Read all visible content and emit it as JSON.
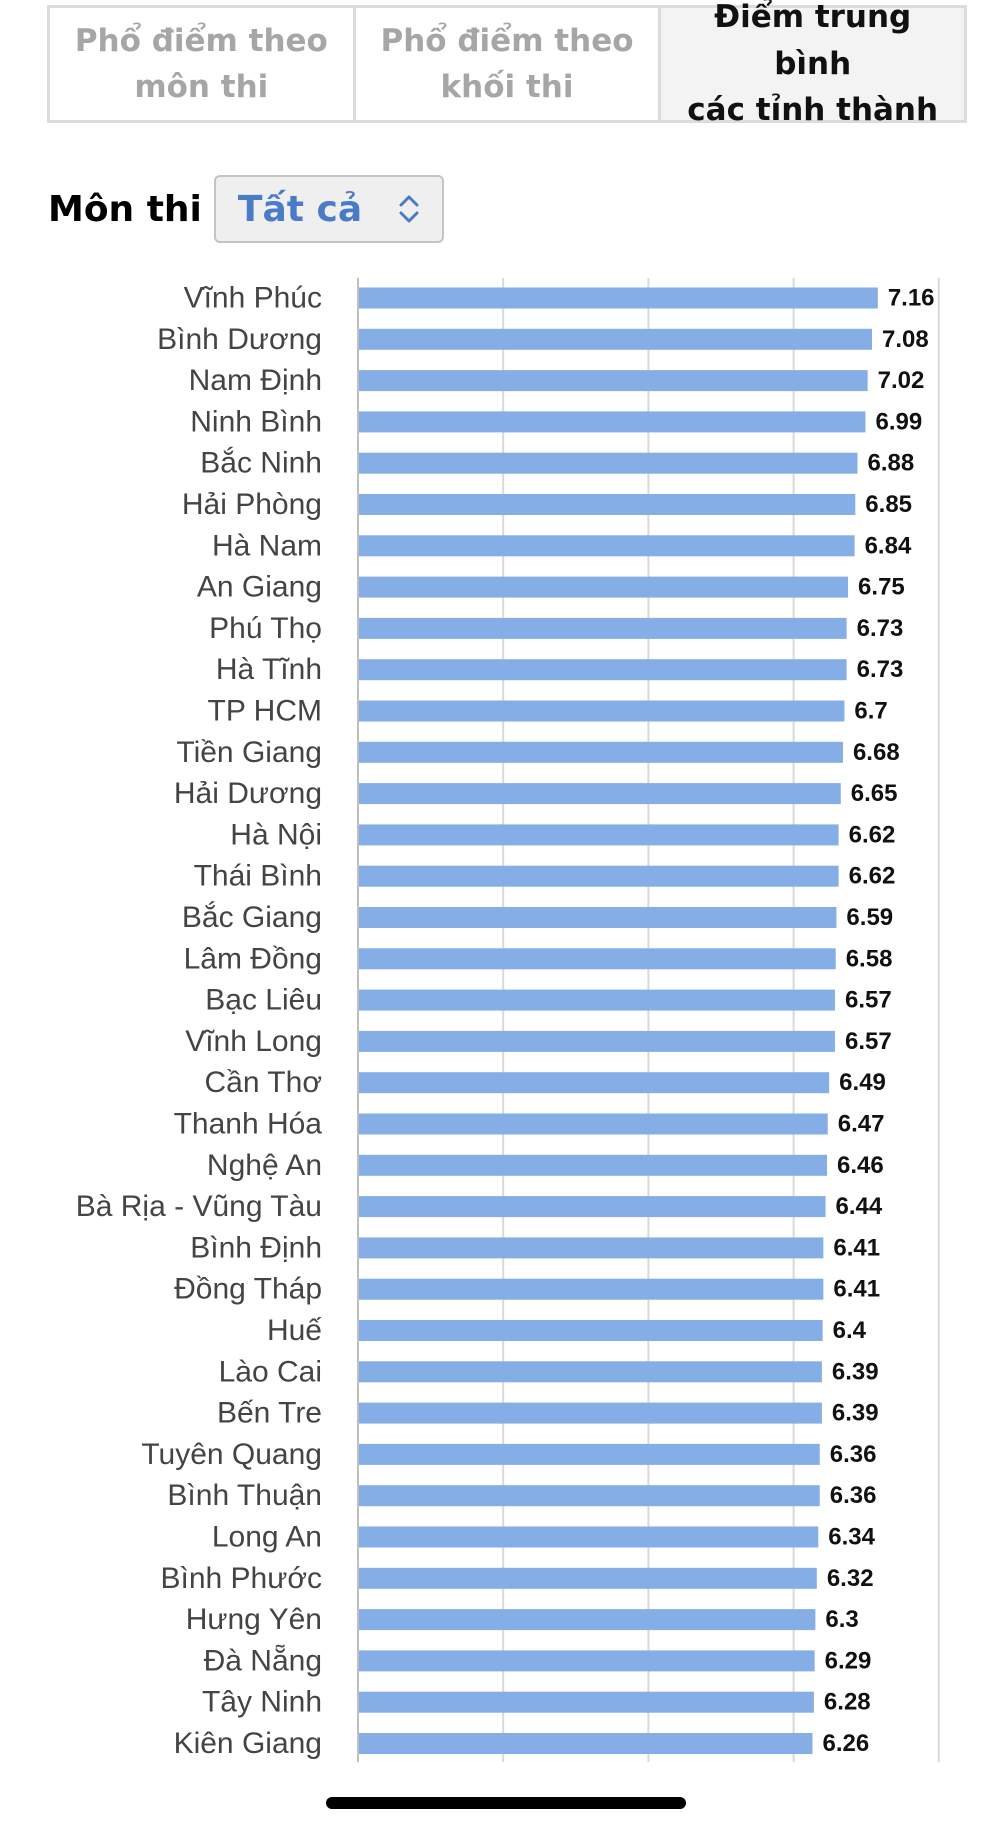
{
  "tabs": [
    {
      "label_line1": "Phổ điểm theo",
      "label_line2": "môn thi",
      "active": false
    },
    {
      "label_line1": "Phổ điểm theo",
      "label_line2": "khối thi",
      "active": false
    },
    {
      "label_line1": "Điểm trung bình",
      "label_line2": "các tỉnh thành",
      "active": true
    }
  ],
  "filter": {
    "label": "Môn thi",
    "selected": "Tất cả",
    "icon": "updown-chevron-icon"
  },
  "colors": {
    "bar": "#85aee6",
    "grid": "#d9d9d9",
    "accent": "#4a7bc6"
  },
  "chart_data": {
    "type": "bar",
    "orientation": "horizontal",
    "title": "",
    "xlabel": "",
    "ylabel": "",
    "categories": [
      "Vĩnh Phúc",
      "Bình Dương",
      "Nam Định",
      "Ninh Bình",
      "Bắc Ninh",
      "Hải Phòng",
      "Hà Nam",
      "An Giang",
      "Phú Thọ",
      "Hà Tĩnh",
      "TP HCM",
      "Tiền Giang",
      "Hải Dương",
      "Hà Nội",
      "Thái Bình",
      "Bắc Giang",
      "Lâm Đồng",
      "Bạc Liêu",
      "Vĩnh Long",
      "Cần Thơ",
      "Thanh Hóa",
      "Nghệ An",
      "Bà Rịa - Vũng Tàu",
      "Bình Định",
      "Đồng Tháp",
      "Huế",
      "Lào Cai",
      "Bến Tre",
      "Tuyên Quang",
      "Bình Thuận",
      "Long An",
      "Bình Phước",
      "Hưng Yên",
      "Đà Nẵng",
      "Tây Ninh",
      "Kiên Giang"
    ],
    "values": [
      7.16,
      7.08,
      7.02,
      6.99,
      6.88,
      6.85,
      6.84,
      6.75,
      6.73,
      6.73,
      6.7,
      6.68,
      6.65,
      6.62,
      6.62,
      6.59,
      6.58,
      6.57,
      6.57,
      6.49,
      6.47,
      6.46,
      6.44,
      6.41,
      6.41,
      6.4,
      6.39,
      6.39,
      6.36,
      6.36,
      6.34,
      6.32,
      6.3,
      6.29,
      6.28,
      6.26
    ],
    "value_labels": [
      "7.16",
      "7.08",
      "7.02",
      "6.99",
      "6.88",
      "6.85",
      "6.84",
      "6.75",
      "6.73",
      "6.73",
      "6.7",
      "6.68",
      "6.65",
      "6.62",
      "6.62",
      "6.59",
      "6.58",
      "6.57",
      "6.57",
      "6.49",
      "6.47",
      "6.46",
      "6.44",
      "6.41",
      "6.41",
      "6.4",
      "6.39",
      "6.39",
      "6.36",
      "6.36",
      "6.34",
      "6.32",
      "6.3",
      "6.29",
      "6.28",
      "6.26"
    ],
    "xlim": [
      0,
      8
    ],
    "grid": true,
    "legend": "none"
  }
}
